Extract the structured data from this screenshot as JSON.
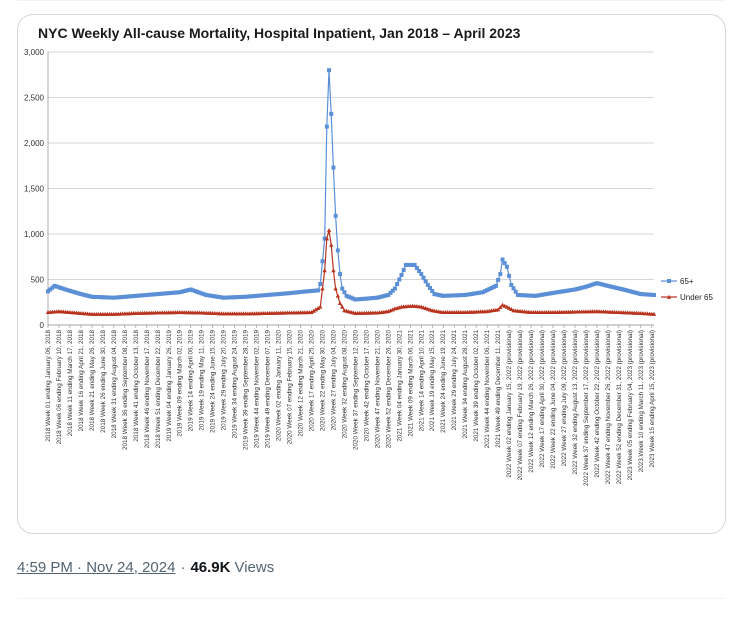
{
  "tweet": {
    "timestamp": "4:59 PM · Nov 24, 2024",
    "separator": "·",
    "views_count": "46.9K",
    "views_label": "Views"
  },
  "chart_data": {
    "type": "line",
    "title": "NYC Weekly All-cause Mortality, Hospital Inpatient, Jan 2018 – April 2023",
    "ylim": [
      0,
      3000
    ],
    "yticks": [
      0,
      500,
      1000,
      1500,
      2000,
      2500,
      3000
    ],
    "ytick_labels": [
      "0",
      "500",
      "1,000",
      "1,500",
      "2,000",
      "2,500",
      "3,000"
    ],
    "grid": true,
    "legend_position": "right",
    "categories": [
      "2018 Week 01 ending January 06, 2018",
      "2018 Week 06 ending February 10, 2018",
      "2018 Week 11 ending March 17, 2018",
      "2018 Week 16 ending April 21, 2018",
      "2018 Week 21 ending May 26, 2018",
      "2018 Week 26 ending June 30, 2018",
      "2018 Week 31 ending August 04, 2018",
      "2018 Week 36 ending September 08, 2018",
      "2018 Week 41 ending October 13, 2018",
      "2018 Week 46 ending November 17, 2018",
      "2018 Week 51 ending December 22, 2018",
      "2019 Week 04 ending January 26, 2019",
      "2019 Week 09 ending March 02, 2019",
      "2019 Week 14 ending April 06, 2019",
      "2019 Week 19 ending May 11, 2019",
      "2019 Week 24 ending June 15, 2019",
      "2019 Week 29 ending July 20, 2019",
      "2019 Week 34 ending August 24, 2019",
      "2019 Week 39 ending September 28, 2019",
      "2019 Week 44 ending November 02, 2019",
      "2019 Week 49 ending December 07, 2019",
      "2020 Week 02 ending January 11, 2020",
      "2020 Week 07 ending February 15, 2020",
      "2020 Week 12 ending March 21, 2020",
      "2020 Week 17 ending April 25, 2020",
      "2020 Week 22 ending May 30, 2020",
      "2020 Week 27 ending July 04, 2020",
      "2020 Week 32 ending August 08, 2020",
      "2020 Week 37 ending September 12, 2020",
      "2020 Week 42 ending October 17, 2020",
      "2020 Week 47 ending November 21, 2020",
      "2020 Week 52 ending December 26, 2020",
      "2021 Week 04 ending January 30, 2021",
      "2021 Week 09 ending March 06, 2021",
      "2021 Week 14 ending April 10, 2021",
      "2021 Week 19 ending May 15, 2021",
      "2021 Week 24 ending June 19, 2021",
      "2021 Week 29 ending July 24, 2021",
      "2021 Week 34 ending August 28, 2021",
      "2021 Week 39 ending October 02, 2021",
      "2021 Week 44 ending November 06, 2021",
      "2021 Week 49 ending December 11, 2021",
      "2022 Week 02 ending January 15, 2022 (provisional)",
      "2022 Week 07 ending February 19, 2022 (provisional)",
      "2022 Week 12 ending March 26, 2022 (provisional)",
      "2022 Week 17 ending April 30, 2022 (provisional)",
      "2022 Week 22 ending June 04, 2022 (provisional)",
      "2022 Week 27 ending July 09, 2022 (provisional)",
      "2022 Week 32 ending August 13, 2022 (provisional)",
      "2022 Week 37 ending September 17, 2022 (provisional)",
      "2022 Week 42 ending October 22, 2022 (provisional)",
      "2022 Week 47 ending November 26, 2022 (provisional)",
      "2022 Week 52 ending December 31, 2022 (provisional)",
      "2023 Week 05 ending February 04, 2023 (provisional)",
      "2023 Week 10 ending March 11, 2023 (provisional)",
      "2023 Week 15 ending April 15, 2023 (provisional)"
    ],
    "x_range": [
      0,
      276
    ],
    "x_label_spacing_weeks": 5,
    "series": [
      {
        "name": "65+",
        "color": "#5b8fd6",
        "marker": "square",
        "keypoints": [
          [
            0,
            370
          ],
          [
            3,
            430
          ],
          [
            8,
            390
          ],
          [
            15,
            340
          ],
          [
            20,
            310
          ],
          [
            30,
            300
          ],
          [
            40,
            320
          ],
          [
            50,
            340
          ],
          [
            60,
            360
          ],
          [
            65,
            390
          ],
          [
            72,
            330
          ],
          [
            80,
            300
          ],
          [
            90,
            310
          ],
          [
            100,
            330
          ],
          [
            110,
            350
          ],
          [
            118,
            370
          ],
          [
            123,
            380
          ],
          [
            124,
            450
          ],
          [
            126,
            950
          ],
          [
            127,
            2180
          ],
          [
            128,
            2800
          ],
          [
            129,
            2320
          ],
          [
            130,
            1730
          ],
          [
            131,
            1200
          ],
          [
            132,
            820
          ],
          [
            133,
            560
          ],
          [
            134,
            400
          ],
          [
            136,
            320
          ],
          [
            140,
            280
          ],
          [
            150,
            300
          ],
          [
            155,
            330
          ],
          [
            158,
            400
          ],
          [
            161,
            550
          ],
          [
            163,
            660
          ],
          [
            167,
            660
          ],
          [
            170,
            560
          ],
          [
            173,
            440
          ],
          [
            176,
            340
          ],
          [
            180,
            320
          ],
          [
            190,
            330
          ],
          [
            198,
            360
          ],
          [
            204,
            430
          ],
          [
            206,
            560
          ],
          [
            207,
            720
          ],
          [
            209,
            640
          ],
          [
            211,
            440
          ],
          [
            214,
            330
          ],
          [
            222,
            320
          ],
          [
            232,
            360
          ],
          [
            240,
            390
          ],
          [
            245,
            420
          ],
          [
            250,
            460
          ],
          [
            255,
            430
          ],
          [
            262,
            390
          ],
          [
            270,
            340
          ],
          [
            276,
            330
          ]
        ]
      },
      {
        "name": "Under 65",
        "color": "#b8341f",
        "marker": "triangle",
        "keypoints": [
          [
            0,
            140
          ],
          [
            5,
            150
          ],
          [
            10,
            140
          ],
          [
            20,
            120
          ],
          [
            30,
            120
          ],
          [
            40,
            130
          ],
          [
            50,
            135
          ],
          [
            60,
            140
          ],
          [
            70,
            135
          ],
          [
            80,
            125
          ],
          [
            90,
            125
          ],
          [
            100,
            130
          ],
          [
            110,
            135
          ],
          [
            120,
            140
          ],
          [
            124,
            200
          ],
          [
            126,
            600
          ],
          [
            127,
            950
          ],
          [
            128,
            1040
          ],
          [
            129,
            880
          ],
          [
            130,
            600
          ],
          [
            131,
            400
          ],
          [
            133,
            240
          ],
          [
            135,
            160
          ],
          [
            140,
            130
          ],
          [
            150,
            135
          ],
          [
            155,
            150
          ],
          [
            158,
            180
          ],
          [
            161,
            200
          ],
          [
            166,
            210
          ],
          [
            170,
            200
          ],
          [
            175,
            160
          ],
          [
            180,
            140
          ],
          [
            190,
            140
          ],
          [
            200,
            150
          ],
          [
            205,
            170
          ],
          [
            207,
            220
          ],
          [
            209,
            200
          ],
          [
            212,
            160
          ],
          [
            220,
            140
          ],
          [
            230,
            140
          ],
          [
            240,
            145
          ],
          [
            250,
            150
          ],
          [
            260,
            140
          ],
          [
            270,
            130
          ],
          [
            276,
            120
          ]
        ]
      }
    ]
  }
}
